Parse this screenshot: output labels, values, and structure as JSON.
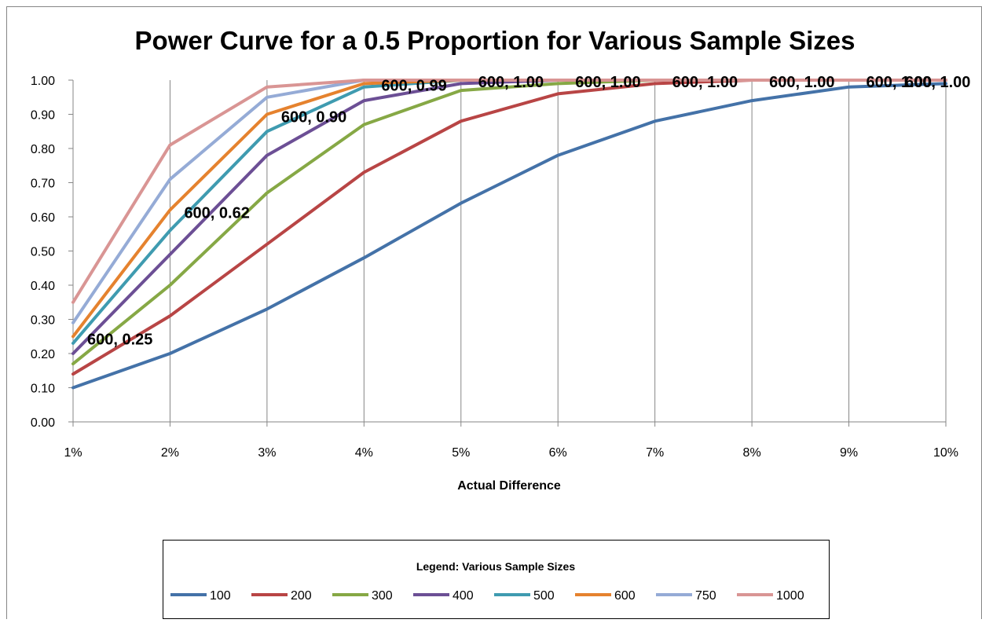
{
  "chart_data": {
    "type": "line",
    "title": "Power Curve for a 0.5 Proportion for Various Sample Sizes",
    "xlabel": "Actual Difference",
    "ylabel": "",
    "categories": [
      "1%",
      "2%",
      "3%",
      "4%",
      "5%",
      "6%",
      "7%",
      "8%",
      "9%",
      "10%"
    ],
    "ylim": [
      0,
      1
    ],
    "yticks": [
      "0.00",
      "0.10",
      "0.20",
      "0.30",
      "0.40",
      "0.50",
      "0.60",
      "0.70",
      "0.80",
      "0.90",
      "1.00"
    ],
    "grid": "vertical",
    "legend": {
      "title": "Legend:  Various Sample Sizes",
      "placement": "bottom"
    },
    "series": [
      {
        "name": "100",
        "color": "#4472a8",
        "values": [
          0.1,
          0.2,
          0.33,
          0.48,
          0.64,
          0.78,
          0.88,
          0.94,
          0.98,
          0.99
        ]
      },
      {
        "name": "200",
        "color": "#b84545",
        "values": [
          0.14,
          0.31,
          0.52,
          0.73,
          0.88,
          0.96,
          0.99,
          1.0,
          1.0,
          1.0
        ]
      },
      {
        "name": "300",
        "color": "#86a845",
        "values": [
          0.17,
          0.4,
          0.67,
          0.87,
          0.97,
          0.99,
          1.0,
          1.0,
          1.0,
          1.0
        ]
      },
      {
        "name": "400",
        "color": "#6c4f95",
        "values": [
          0.2,
          0.49,
          0.78,
          0.94,
          0.99,
          1.0,
          1.0,
          1.0,
          1.0,
          1.0
        ]
      },
      {
        "name": "500",
        "color": "#3f9bb0",
        "values": [
          0.23,
          0.56,
          0.85,
          0.98,
          1.0,
          1.0,
          1.0,
          1.0,
          1.0,
          1.0
        ]
      },
      {
        "name": "600",
        "color": "#e5822e",
        "values": [
          0.25,
          0.62,
          0.9,
          0.99,
          1.0,
          1.0,
          1.0,
          1.0,
          1.0,
          1.0
        ]
      },
      {
        "name": "750",
        "color": "#95abd6",
        "values": [
          0.29,
          0.71,
          0.95,
          1.0,
          1.0,
          1.0,
          1.0,
          1.0,
          1.0,
          1.0
        ]
      },
      {
        "name": "1000",
        "color": "#d99594",
        "values": [
          0.35,
          0.81,
          0.98,
          1.0,
          1.0,
          1.0,
          1.0,
          1.0,
          1.0,
          1.0
        ]
      }
    ],
    "data_labels": [
      {
        "text": "600, 0.25"
      },
      {
        "text": "600, 0.62"
      },
      {
        "text": "600, 0.90"
      },
      {
        "text": "600, 0.99"
      },
      {
        "text": "600, 1.00"
      },
      {
        "text": "600, 1.00"
      },
      {
        "text": "600, 1.00"
      },
      {
        "text": "600, 1.00"
      },
      {
        "text": "600, 1.00"
      },
      {
        "text": "600, 1.00"
      }
    ]
  }
}
